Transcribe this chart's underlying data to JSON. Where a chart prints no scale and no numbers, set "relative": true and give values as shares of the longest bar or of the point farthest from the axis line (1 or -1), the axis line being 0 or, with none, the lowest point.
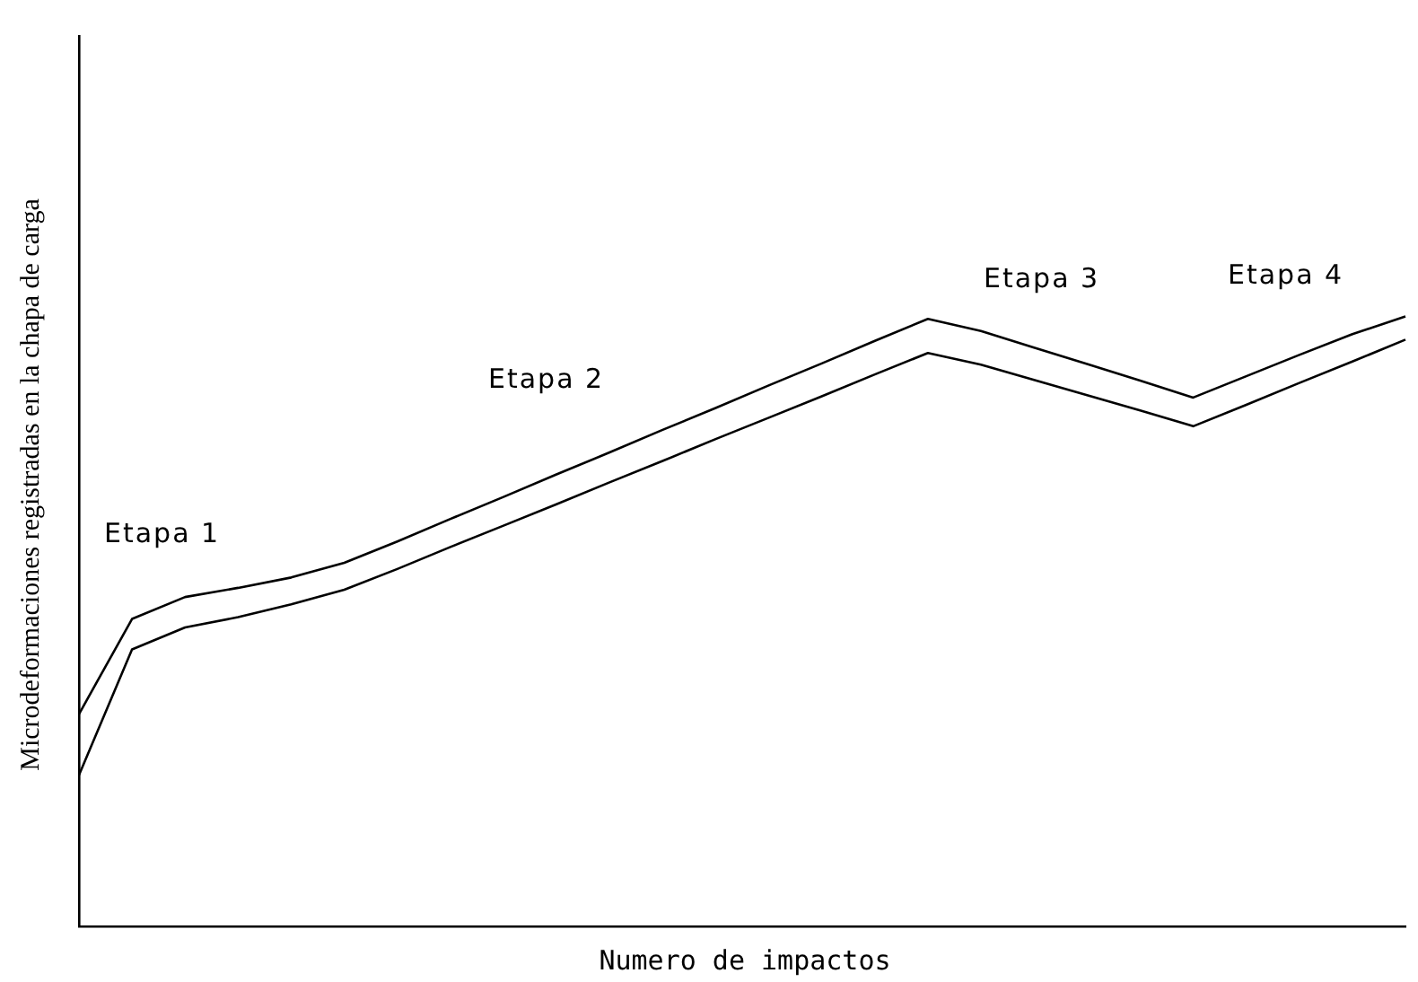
{
  "chart_data": {
    "type": "line",
    "relative": true,
    "xlabel": "Numero de impactos",
    "ylabel": "Microdeformaciones registradas en la chapa de carga",
    "categories": [
      null,
      null,
      null,
      null,
      null,
      null,
      null,
      null,
      null,
      null,
      null,
      null,
      null,
      null,
      null,
      null,
      null,
      null,
      null,
      null,
      null,
      null,
      null,
      null,
      null,
      null
    ],
    "series": [
      {
        "color": "#000000",
        "values": [
          0.248,
          0.454,
          0.49,
          0.507,
          0.528,
          0.552,
          0.586,
          0.622,
          0.657,
          0.692,
          0.728,
          0.763,
          0.799,
          0.834,
          0.869,
          0.905,
          0.94,
          0.921,
          0.896,
          0.871,
          0.846,
          0.82,
          0.855,
          0.891,
          0.926,
          0.962
        ]
      },
      {
        "color": "#000000",
        "values": [
          0.348,
          0.504,
          0.54,
          0.555,
          0.572,
          0.596,
          0.631,
          0.668,
          0.704,
          0.741,
          0.777,
          0.814,
          0.85,
          0.887,
          0.923,
          0.96,
          0.996,
          0.976,
          0.949,
          0.922,
          0.895,
          0.867,
          0.902,
          0.937,
          0.971,
          1.0
        ]
      }
    ],
    "annotations": [
      "Etapa 1",
      "Etapa 2",
      "Etapa 3",
      "Etapa 4"
    ],
    "marker": "none",
    "line_style": "solid",
    "grid": false,
    "legend": false,
    "tick_labels": false
  }
}
